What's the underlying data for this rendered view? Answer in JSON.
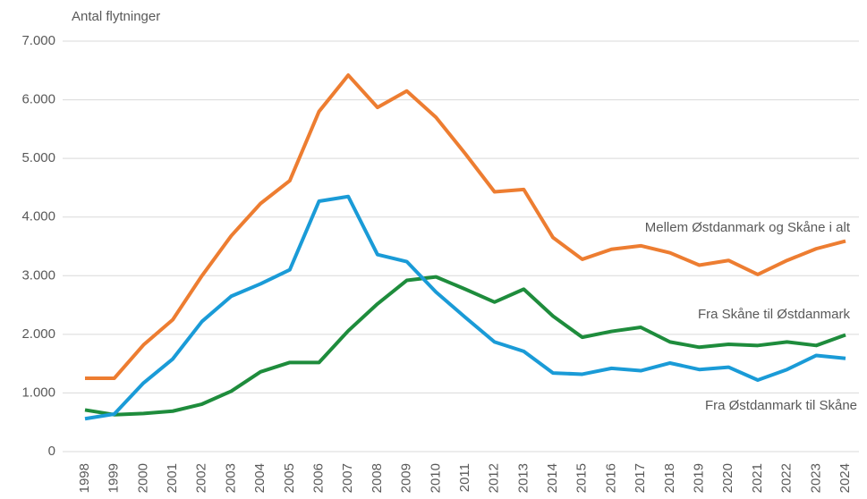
{
  "chart_data": {
    "type": "line",
    "y_label": "Antal flytninger",
    "categories": [
      "1998",
      "1999",
      "2000",
      "2001",
      "2002",
      "2003",
      "2004",
      "2005",
      "2006",
      "2007",
      "2008",
      "2009",
      "2010",
      "2011",
      "2012",
      "2013",
      "2014",
      "2015",
      "2016",
      "2017",
      "2018",
      "2019",
      "2020",
      "2021",
      "2022",
      "2023",
      "2024"
    ],
    "series": [
      {
        "name": "Mellem Østdanmark og Skåne i alt",
        "color": "#ed7d31",
        "values": [
          1250,
          1250,
          1820,
          2250,
          3000,
          3680,
          4230,
          4620,
          5800,
          6420,
          5870,
          6150,
          5700,
          5080,
          4430,
          4470,
          3650,
          3280,
          3450,
          3510,
          3390,
          3180,
          3260,
          3020,
          3260,
          3460,
          3590
        ]
      },
      {
        "name": "Fra Skåne til Østdanmark",
        "color": "#1e8c3c",
        "values": [
          710,
          630,
          650,
          690,
          810,
          1030,
          1360,
          1520,
          1520,
          2060,
          2520,
          2920,
          2980,
          2770,
          2550,
          2770,
          2310,
          1950,
          2050,
          2120,
          1870,
          1780,
          1830,
          1810,
          1870,
          1810,
          1990
        ]
      },
      {
        "name": "Fra Østdanmark til Skåne",
        "color": "#1a9bd7",
        "values": [
          560,
          640,
          1170,
          1580,
          2220,
          2650,
          2860,
          3100,
          4270,
          4350,
          3360,
          3240,
          2720,
          2290,
          1870,
          1710,
          1340,
          1320,
          1420,
          1380,
          1510,
          1400,
          1440,
          1220,
          1400,
          1640,
          1590
        ]
      }
    ],
    "ylim": [
      0,
      7000
    ],
    "yticks": [
      0,
      {
        "value": 1000,
        "label": "1.000"
      },
      {
        "value": 2000,
        "label": "2.000"
      },
      {
        "value": 3000,
        "label": "3.000"
      },
      {
        "value": 4000,
        "label": "4.000"
      },
      {
        "value": 5000,
        "label": "5.000"
      },
      {
        "value": 6000,
        "label": "6.000"
      },
      {
        "value": 7000,
        "label": "7.000"
      }
    ],
    "grid": true
  }
}
